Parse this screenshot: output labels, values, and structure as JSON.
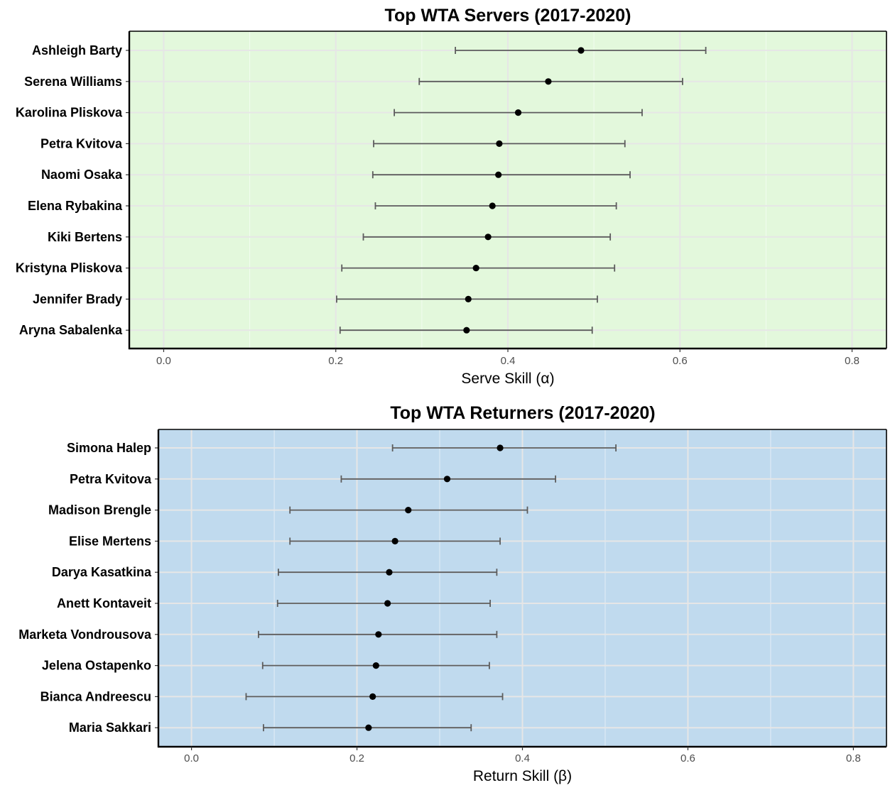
{
  "chart_data": [
    {
      "type": "scatter",
      "subtype": "dot-with-error-bars",
      "title": "Top WTA Servers (2017-2020)",
      "xlabel": "Serve Skill (α)",
      "ylabel": "",
      "xlim": [
        -0.04,
        0.84
      ],
      "xticks": [
        0.0,
        0.2,
        0.4,
        0.6,
        0.8
      ],
      "xtick_labels": [
        "0.0",
        "0.2",
        "0.4",
        "0.6",
        "0.8"
      ],
      "grid": true,
      "background": "#e3f8dc",
      "players": [
        "Ashleigh Barty",
        "Serena Williams",
        "Karolina Pliskova",
        "Petra Kvitova",
        "Naomi Osaka",
        "Elena Rybakina",
        "Kiki Bertens",
        "Kristyna Pliskova",
        "Jennifer Brady",
        "Aryna Sabalenka"
      ],
      "estimate": [
        0.485,
        0.447,
        0.412,
        0.39,
        0.389,
        0.382,
        0.377,
        0.363,
        0.354,
        0.352
      ],
      "lower": [
        0.339,
        0.297,
        0.268,
        0.244,
        0.243,
        0.246,
        0.232,
        0.207,
        0.201,
        0.205
      ],
      "upper": [
        0.63,
        0.603,
        0.556,
        0.536,
        0.542,
        0.526,
        0.519,
        0.524,
        0.504,
        0.498
      ]
    },
    {
      "type": "scatter",
      "subtype": "dot-with-error-bars",
      "title": "Top WTA Returners (2017-2020)",
      "xlabel": "Return Skill (β)",
      "ylabel": "",
      "xlim": [
        -0.04,
        0.84
      ],
      "xticks": [
        0.0,
        0.2,
        0.4,
        0.6,
        0.8
      ],
      "xtick_labels": [
        "0.0",
        "0.2",
        "0.4",
        "0.6",
        "0.8"
      ],
      "grid": true,
      "background": "#c0daee",
      "players": [
        "Simona Halep",
        "Petra Kvitova",
        "Madison Brengle",
        "Elise Mertens",
        "Darya Kasatkina",
        "Anett Kontaveit",
        "Marketa Vondrousova",
        "Jelena Ostapenko",
        "Bianca Andreescu",
        "Maria Sakkari"
      ],
      "estimate": [
        0.373,
        0.309,
        0.262,
        0.246,
        0.239,
        0.237,
        0.226,
        0.223,
        0.219,
        0.214
      ],
      "lower": [
        0.243,
        0.181,
        0.119,
        0.119,
        0.105,
        0.104,
        0.081,
        0.086,
        0.066,
        0.087
      ],
      "upper": [
        0.513,
        0.44,
        0.406,
        0.373,
        0.369,
        0.361,
        0.369,
        0.36,
        0.376,
        0.338
      ]
    }
  ]
}
